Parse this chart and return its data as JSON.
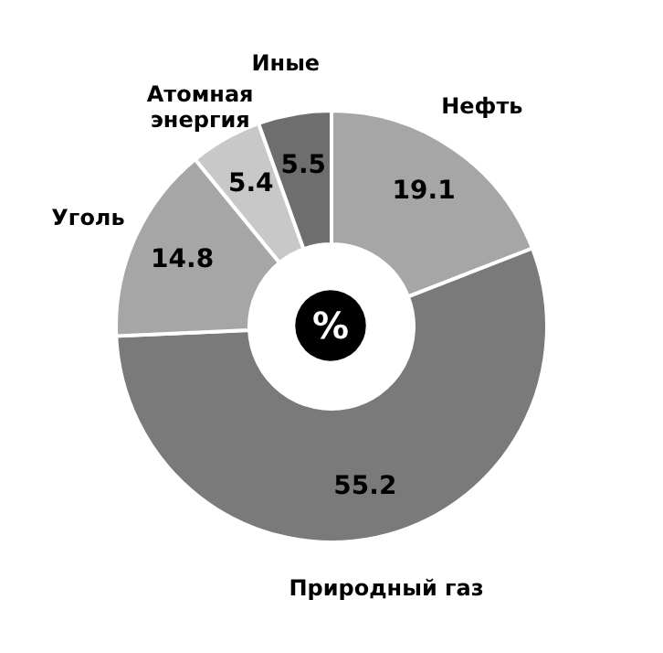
{
  "chart_data": {
    "type": "donut",
    "categories": [
      "Нефть",
      "Природный газ",
      "Уголь",
      "Атомная энергия",
      "Иные"
    ],
    "values": [
      19.1,
      55.2,
      14.8,
      5.4,
      5.5
    ],
    "colors": [
      "#a6a6a6",
      "#7a7a7a",
      "#a6a6a6",
      "#c8c8c8",
      "#6e6e6e"
    ],
    "data_labels": true,
    "legend": false,
    "annotations": [
      "%"
    ]
  }
}
